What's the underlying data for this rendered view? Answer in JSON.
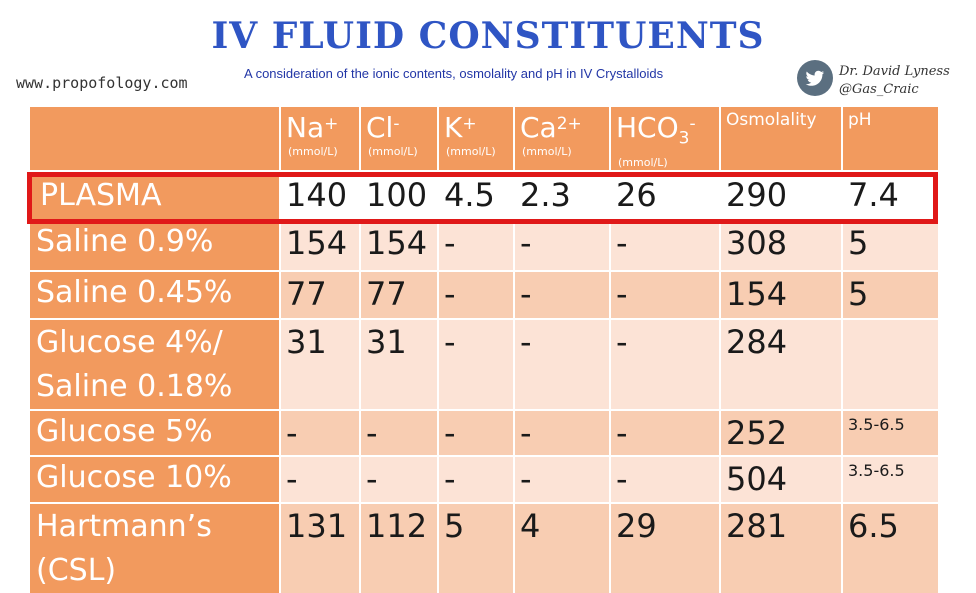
{
  "header": {
    "title": "IV FLUID CONSTITUENTS",
    "site": "www.propofology.com",
    "subtitle": "A consideration of the ionic contents, osmolality and pH in IV Crystalloids",
    "author_name": "Dr. David Lyness",
    "author_handle": "@Gas_Craic"
  },
  "table": {
    "columns": [
      {
        "name": "Na",
        "sup": "+",
        "sub": "",
        "unit": "(mmol/L)"
      },
      {
        "name": "Cl",
        "sup": "-",
        "sub": "",
        "unit": "(mmol/L)"
      },
      {
        "name": "K",
        "sup": "+",
        "sub": "",
        "unit": "(mmol/L)"
      },
      {
        "name": "Ca",
        "sup": "2+",
        "sub": "",
        "unit": "(mmol/L)"
      },
      {
        "name": "HCO",
        "sup": "-",
        "sub": "3",
        "unit": "(mmol/L)"
      },
      {
        "name": "Osmolality",
        "sup": "",
        "sub": "",
        "unit": ""
      },
      {
        "name": "pH",
        "sup": "",
        "sub": "",
        "unit": ""
      }
    ],
    "rows": [
      {
        "label": [
          "PLASMA"
        ],
        "values": [
          "140",
          "100",
          "4.5",
          "2.3",
          "26",
          "290",
          "7.4"
        ],
        "highlighted": true
      },
      {
        "label": [
          "Saline 0.9%"
        ],
        "values": [
          "154",
          "154",
          "-",
          "-",
          "-",
          "308",
          "5"
        ]
      },
      {
        "label": [
          "Saline 0.45%"
        ],
        "values": [
          "77",
          "77",
          "-",
          "-",
          "-",
          "154",
          "5"
        ]
      },
      {
        "label": [
          "Glucose 4%/",
          "Saline 0.18%"
        ],
        "values": [
          "31",
          "31",
          "-",
          "-",
          "-",
          "284",
          ""
        ]
      },
      {
        "label": [
          "Glucose 5%"
        ],
        "values": [
          "-",
          "-",
          "-",
          "-",
          "-",
          "252",
          "3.5-6.5"
        ]
      },
      {
        "label": [
          "Glucose 10%"
        ],
        "values": [
          "-",
          "-",
          "-",
          "-",
          "-",
          "504",
          "3.5-6.5"
        ]
      },
      {
        "label": [
          "Hartmann’s",
          "(CSL)"
        ],
        "values": [
          "131",
          "112",
          "5",
          "4",
          "29",
          "281",
          "6.5"
        ]
      }
    ],
    "colors": {
      "header": "#f29a5e",
      "row_light": "#fce3d6",
      "row_dark": "#f8cdb2",
      "highlight_border": "#e01818",
      "title": "#2f55c4"
    }
  }
}
